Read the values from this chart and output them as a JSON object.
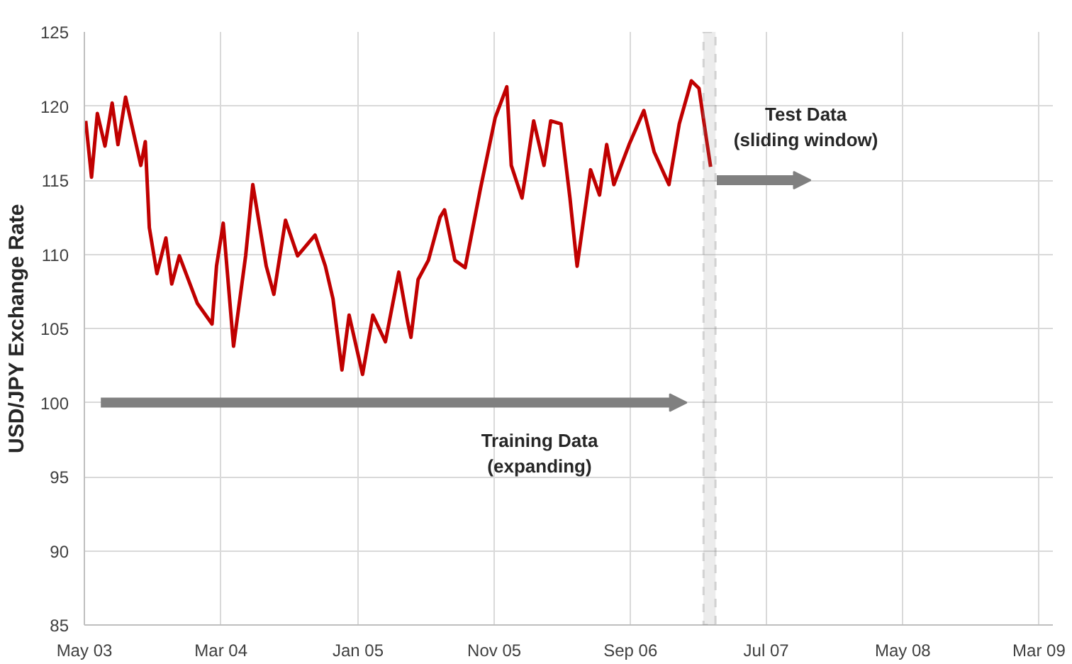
{
  "chart_data": {
    "type": "line",
    "ylabel": "USD/JPY Exchange Rate",
    "x": [
      "2003-05-04",
      "2003-05-17",
      "2003-05-30",
      "2003-06-16",
      "2003-07-02",
      "2003-07-15",
      "2003-08-01",
      "2003-09-04",
      "2003-09-14",
      "2003-09-23",
      "2003-10-10",
      "2003-10-30",
      "2003-11-12",
      "2003-11-29",
      "2004-01-08",
      "2004-02-10",
      "2004-02-20",
      "2004-03-06",
      "2004-03-29",
      "2004-04-25",
      "2004-05-11",
      "2004-06-10",
      "2004-06-27",
      "2004-07-23",
      "2004-08-19",
      "2004-09-27",
      "2004-10-20",
      "2004-11-06",
      "2004-11-26",
      "2004-12-12",
      "2005-01-11",
      "2005-02-03",
      "2005-03-03",
      "2005-04-02",
      "2005-04-22",
      "2005-04-29",
      "2005-05-15",
      "2005-06-07",
      "2005-07-03",
      "2005-07-13",
      "2005-08-05",
      "2005-08-28",
      "2005-10-01",
      "2005-11-03",
      "2005-11-29",
      "2005-12-09",
      "2006-01-02",
      "2006-01-28",
      "2006-02-20",
      "2006-03-07",
      "2006-03-30",
      "2006-04-19",
      "2006-05-05",
      "2006-06-04",
      "2006-06-24",
      "2006-07-10",
      "2006-07-26",
      "2006-08-29",
      "2006-10-01",
      "2006-10-24",
      "2006-11-26",
      "2006-12-19",
      "2007-01-15",
      "2007-02-01",
      "2007-02-17",
      "2007-02-27"
    ],
    "series": [
      {
        "color": "#c00000",
        "values": [
          119.0,
          115.2,
          119.5,
          117.3,
          120.2,
          117.4,
          120.6,
          116.0,
          117.6,
          111.8,
          108.7,
          111.1,
          108.0,
          109.9,
          106.7,
          105.3,
          109.2,
          112.1,
          103.8,
          109.9,
          114.7,
          109.2,
          107.3,
          112.3,
          109.9,
          111.3,
          109.2,
          107.0,
          102.2,
          105.9,
          101.9,
          105.9,
          104.1,
          108.8,
          105.4,
          104.4,
          108.3,
          109.6,
          112.5,
          113.0,
          109.6,
          109.1,
          114.4,
          119.2,
          121.3,
          116.0,
          113.8,
          119.0,
          116.0,
          119.0,
          118.8,
          113.8,
          109.2,
          115.7,
          114.0,
          117.4,
          114.7,
          117.4,
          119.7,
          116.9,
          114.7,
          118.8,
          121.7,
          121.2,
          117.9,
          115.9
        ]
      }
    ],
    "xlim": [
      "2003-05-01",
      "2009-04-01"
    ],
    "xticks": [
      {
        "value": "2003-05-01",
        "label": "May 03"
      },
      {
        "value": "2004-03-01",
        "label": "Mar 04"
      },
      {
        "value": "2005-01-01",
        "label": "Jan 05"
      },
      {
        "value": "2005-11-01",
        "label": "Nov 05"
      },
      {
        "value": "2006-09-01",
        "label": "Sep 06"
      },
      {
        "value": "2007-07-01",
        "label": "Jul 07"
      },
      {
        "value": "2008-05-01",
        "label": "May 08"
      },
      {
        "value": "2009-03-01",
        "label": "Mar 09"
      }
    ],
    "ylim": [
      85,
      125
    ],
    "yticks": [
      85,
      90,
      95,
      100,
      105,
      110,
      115,
      120,
      125
    ],
    "bands": [
      {
        "axis": "x",
        "from": "2007-02-11",
        "to": "2007-03-10",
        "color": "#808080"
      }
    ],
    "annotations": [
      "Training Data\n(expanding)",
      "Test Data\n(sliding window)"
    ],
    "grid": true,
    "line_style": "solid",
    "marker": "none"
  }
}
